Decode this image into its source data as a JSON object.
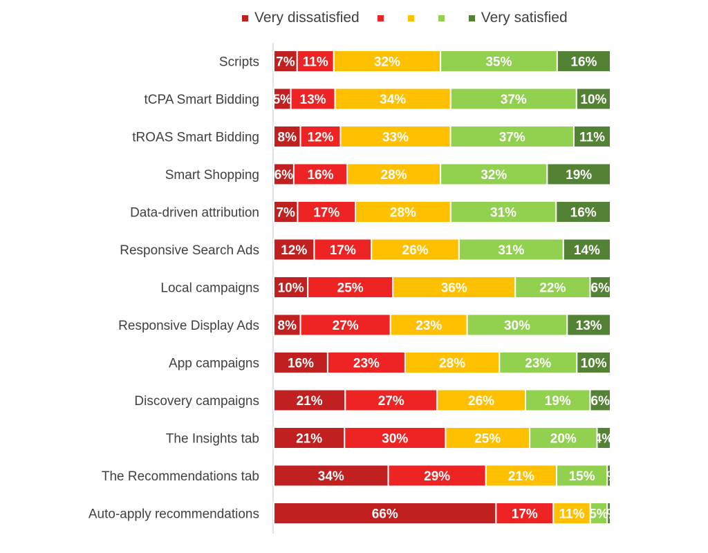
{
  "chart_data": {
    "type": "bar",
    "orientation": "horizontal",
    "stacked": true,
    "normalized": "percent",
    "title": "",
    "xlabel": "",
    "ylabel": "",
    "xlim": [
      0,
      100
    ],
    "legend_placement": "top",
    "categories": [
      "Scripts",
      "tCPA Smart Bidding",
      "tROAS Smart Bidding",
      "Smart Shopping",
      "Data-driven attribution",
      "Responsive Search Ads",
      "Local campaigns",
      "Responsive Display Ads",
      "App campaigns",
      "Discovery campaigns",
      "The Insights tab",
      "The Recommendations tab",
      "Auto-apply recommendations"
    ],
    "series": [
      {
        "name": "Very dissatisfied",
        "color": "#C0201F",
        "values": [
          7,
          5,
          8,
          6,
          7,
          12,
          10,
          8,
          16,
          21,
          21,
          34,
          66
        ]
      },
      {
        "name": "",
        "color": "#EE2424",
        "values": [
          11,
          13,
          12,
          16,
          17,
          17,
          25,
          27,
          23,
          27,
          30,
          29,
          17
        ]
      },
      {
        "name": "",
        "color": "#FFC000",
        "values": [
          32,
          34,
          33,
          28,
          28,
          26,
          36,
          23,
          28,
          26,
          25,
          21,
          11
        ]
      },
      {
        "name": "",
        "color": "#92D050",
        "values": [
          35,
          37,
          37,
          32,
          31,
          31,
          22,
          30,
          23,
          19,
          20,
          15,
          5
        ]
      },
      {
        "name": "Very satisfied",
        "color": "#548235",
        "values": [
          16,
          10,
          11,
          19,
          16,
          14,
          6,
          13,
          10,
          6,
          4,
          1,
          1
        ]
      }
    ]
  }
}
